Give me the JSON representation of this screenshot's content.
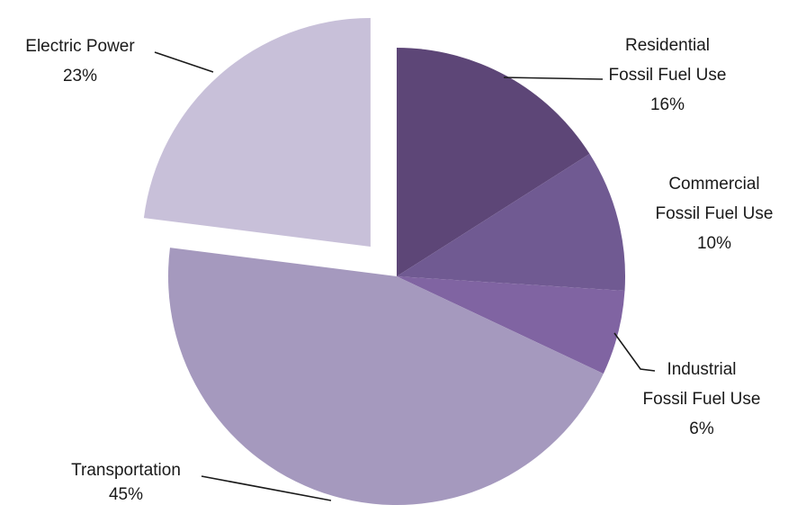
{
  "chart_data": {
    "type": "pie",
    "title": "",
    "slices": [
      {
        "label_lines": [
          "Residential",
          "Fossil Fuel Use"
        ],
        "percent_text": "16%",
        "value": 16,
        "color": "#5d4677",
        "exploded": false
      },
      {
        "label_lines": [
          "Commercial",
          "Fossil Fuel Use"
        ],
        "percent_text": "10%",
        "value": 10,
        "color": "#705a92",
        "exploded": false
      },
      {
        "label_lines": [
          "Industrial",
          "Fossil Fuel Use"
        ],
        "percent_text": "6%",
        "value": 6,
        "color": "#8064a2",
        "exploded": false
      },
      {
        "label_lines": [
          "Transportation"
        ],
        "percent_text": "45%",
        "value": 45,
        "color": "#a599be",
        "exploded": false
      },
      {
        "label_lines": [
          "Electric Power"
        ],
        "percent_text": "23%",
        "value": 23,
        "color": "#c8c0d9",
        "exploded": true
      }
    ],
    "start_angle": "12 o'clock",
    "direction": "clockwise",
    "legend": "none"
  }
}
